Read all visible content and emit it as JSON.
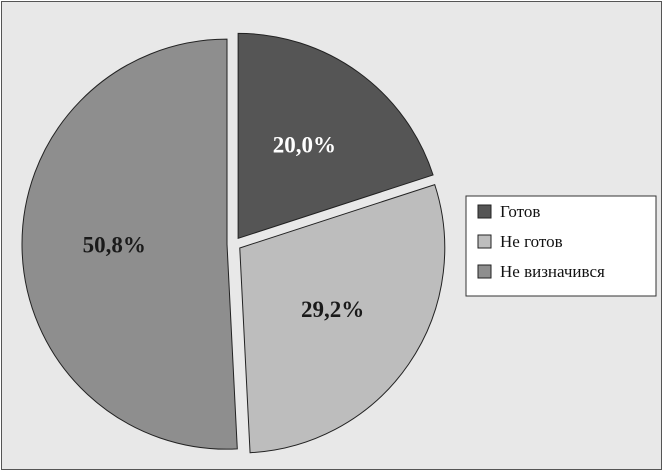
{
  "chart_data": {
    "type": "pie",
    "categories": [
      "Готов",
      "Не готов",
      "Не визначився"
    ],
    "values": [
      20.0,
      29.2,
      50.8
    ],
    "value_labels": [
      "20,0%",
      "29,2%",
      "50,8%"
    ],
    "colors": [
      "#555555",
      "#bdbdbd",
      "#8e8e8e"
    ],
    "legend": "right"
  }
}
